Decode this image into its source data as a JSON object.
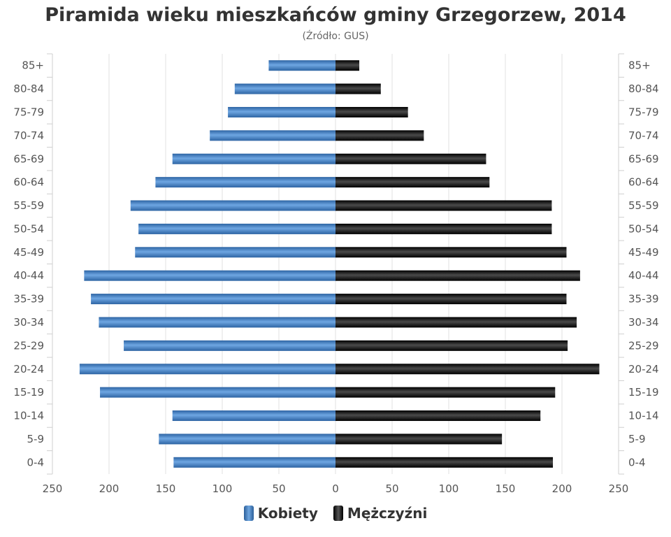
{
  "chart_data": {
    "type": "bar",
    "orientation": "horizontal-population-pyramid",
    "title": "Piramida wieku mieszkańców gminy Grzegorzew, 2014",
    "subtitle": "(Źródło: GUS)",
    "categories": [
      "85+",
      "80-84",
      "75-79",
      "70-74",
      "65-69",
      "60-64",
      "55-59",
      "50-54",
      "45-49",
      "40-44",
      "35-39",
      "30-34",
      "25-29",
      "20-24",
      "15-19",
      "10-14",
      "5-9",
      "0-4"
    ],
    "series": [
      {
        "name": "Kobiety",
        "values": [
          59,
          89,
          95,
          111,
          144,
          159,
          181,
          174,
          177,
          222,
          216,
          209,
          187,
          226,
          208,
          144,
          156,
          143
        ],
        "color": "#4a86c8"
      },
      {
        "name": "Mężczyźni",
        "values": [
          21,
          40,
          64,
          78,
          133,
          136,
          191,
          191,
          204,
          216,
          204,
          213,
          205,
          233,
          194,
          181,
          147,
          192
        ],
        "color": "#1a1a1a"
      }
    ],
    "xlim": [
      -250,
      250
    ],
    "x_ticks": [
      -250,
      -200,
      -150,
      -100,
      -50,
      0,
      50,
      100,
      150,
      200,
      250
    ],
    "x_tick_labels": [
      "250",
      "200",
      "150",
      "100",
      "50",
      "0",
      "50",
      "100",
      "150",
      "200",
      "250"
    ],
    "grid": true,
    "legend_position": "bottom-center"
  }
}
